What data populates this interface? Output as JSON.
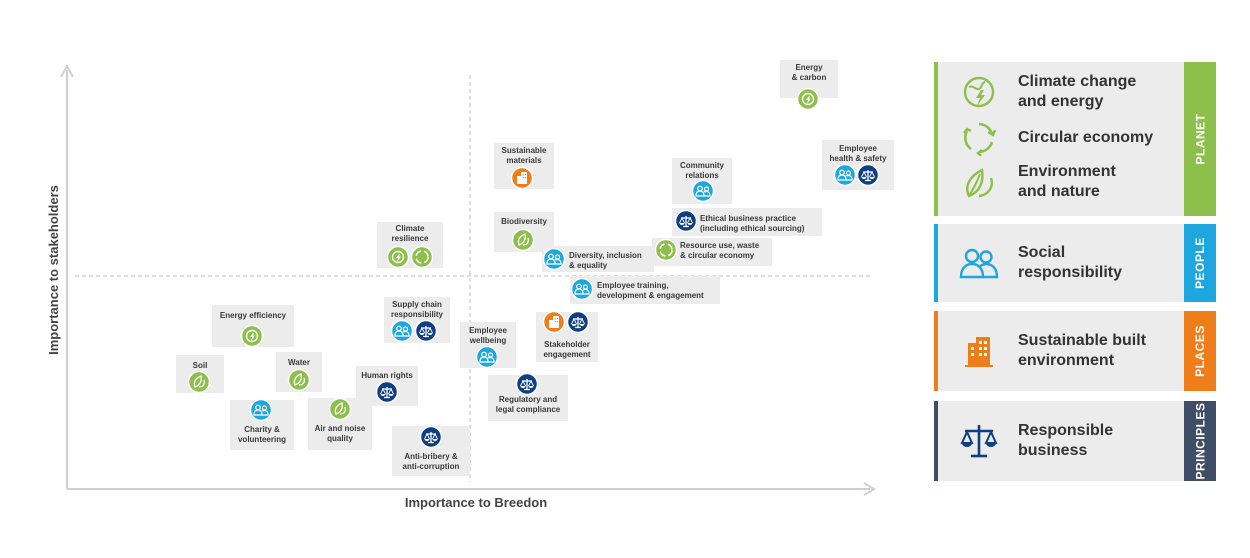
{
  "axes": {
    "x_label": "Importance to Breedon",
    "y_label": "Importance to stakeholders"
  },
  "colors": {
    "planet": "#8dc04a",
    "people": "#1ea7de",
    "places": "#ef7d1a",
    "principles": "#0d3f82",
    "principles_band": "#3f4e66"
  },
  "legend": [
    {
      "tab": "PLANET",
      "items": [
        {
          "icon": "globe-lightning-icon",
          "label": "Climate change\nand energy"
        },
        {
          "icon": "recycle-icon",
          "label": "Circular economy"
        },
        {
          "icon": "leaves-icon",
          "label": "Environment\nand nature"
        }
      ]
    },
    {
      "tab": "PEOPLE",
      "items": [
        {
          "icon": "people-icon",
          "label": "Social\nresponsibility"
        }
      ]
    },
    {
      "tab": "PLACES",
      "items": [
        {
          "icon": "building-icon",
          "label": "Sustainable built\nenvironment"
        }
      ]
    },
    {
      "tab": "PRINCIPLES",
      "items": [
        {
          "icon": "scales-icon",
          "label": "Responsible\nbusiness"
        }
      ]
    }
  ],
  "topics": [
    {
      "label": "Energy\n& carbon",
      "icons": [
        "climate"
      ]
    },
    {
      "label": "Employee\nhealth & safety",
      "icons": [
        "social",
        "responsible"
      ]
    },
    {
      "label": "Sustainable\nmaterials",
      "icons": [
        "built"
      ]
    },
    {
      "label": "Community\nrelations",
      "icons": [
        "social"
      ]
    },
    {
      "label": "Ethical business practice\n(including ethical sourcing)",
      "icons": [
        "responsible"
      ]
    },
    {
      "label": "Climate\nresilience",
      "icons": [
        "climate",
        "circular"
      ]
    },
    {
      "label": "Biodiversity",
      "icons": [
        "nature"
      ]
    },
    {
      "label": "Diversity, inclusion\n& equality",
      "icons": [
        "social"
      ]
    },
    {
      "label": "Resource use, waste\n& circular economy",
      "icons": [
        "circular"
      ]
    },
    {
      "label": "Employee training,\ndevelopment & engagement",
      "icons": [
        "social"
      ]
    },
    {
      "label": "Energy efficiency",
      "icons": [
        "climate"
      ]
    },
    {
      "label": "Supply chain\nresponsibility",
      "icons": [
        "social",
        "responsible"
      ]
    },
    {
      "label": "Employee\nwellbeing",
      "icons": [
        "social"
      ]
    },
    {
      "label": "Stakeholder\nengagement",
      "icons": [
        "built",
        "responsible"
      ]
    },
    {
      "label": "Soil",
      "icons": [
        "nature"
      ]
    },
    {
      "label": "Water",
      "icons": [
        "nature"
      ]
    },
    {
      "label": "Human rights",
      "icons": [
        "responsible"
      ]
    },
    {
      "label": "Regulatory and\nlegal compliance",
      "icons": [
        "responsible"
      ]
    },
    {
      "label": "Charity &\nvolunteering",
      "icons": [
        "social"
      ]
    },
    {
      "label": "Air and noise\nquality",
      "icons": [
        "nature"
      ]
    },
    {
      "label": "Anti-bribery &\nanti-corruption",
      "icons": [
        "responsible"
      ]
    }
  ]
}
